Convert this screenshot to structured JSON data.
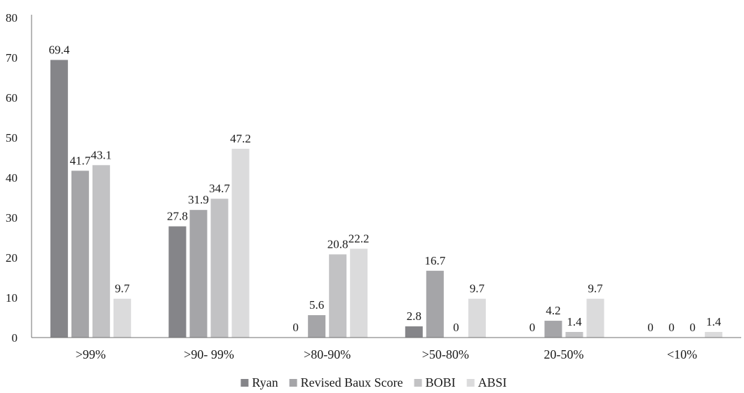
{
  "chart_data": {
    "type": "bar",
    "title": "",
    "xlabel": "",
    "ylabel": "",
    "ylim": [
      0,
      80
    ],
    "yticks": [
      0,
      10,
      20,
      30,
      40,
      50,
      60,
      70,
      80
    ],
    "categories": [
      ">99%",
      ">90- 99%",
      ">80-90%",
      ">50-80%",
      "20-50%",
      "<10%"
    ],
    "series": [
      {
        "name": "Ryan",
        "color": "#858589",
        "values": [
          69.4,
          27.8,
          0,
          2.8,
          0,
          0
        ]
      },
      {
        "name": "Revised Baux Score",
        "color": "#a5a5a8",
        "values": [
          41.7,
          31.9,
          5.6,
          16.7,
          4.2,
          0
        ]
      },
      {
        "name": "BOBI",
        "color": "#c2c2c4",
        "values": [
          43.1,
          34.7,
          20.8,
          0,
          1.4,
          0
        ]
      },
      {
        "name": "ABSI",
        "color": "#dbdbdc",
        "values": [
          9.7,
          47.2,
          22.2,
          9.7,
          9.7,
          1.4
        ]
      }
    ],
    "data_labels": true,
    "grid": false,
    "legend_position": "bottom"
  }
}
